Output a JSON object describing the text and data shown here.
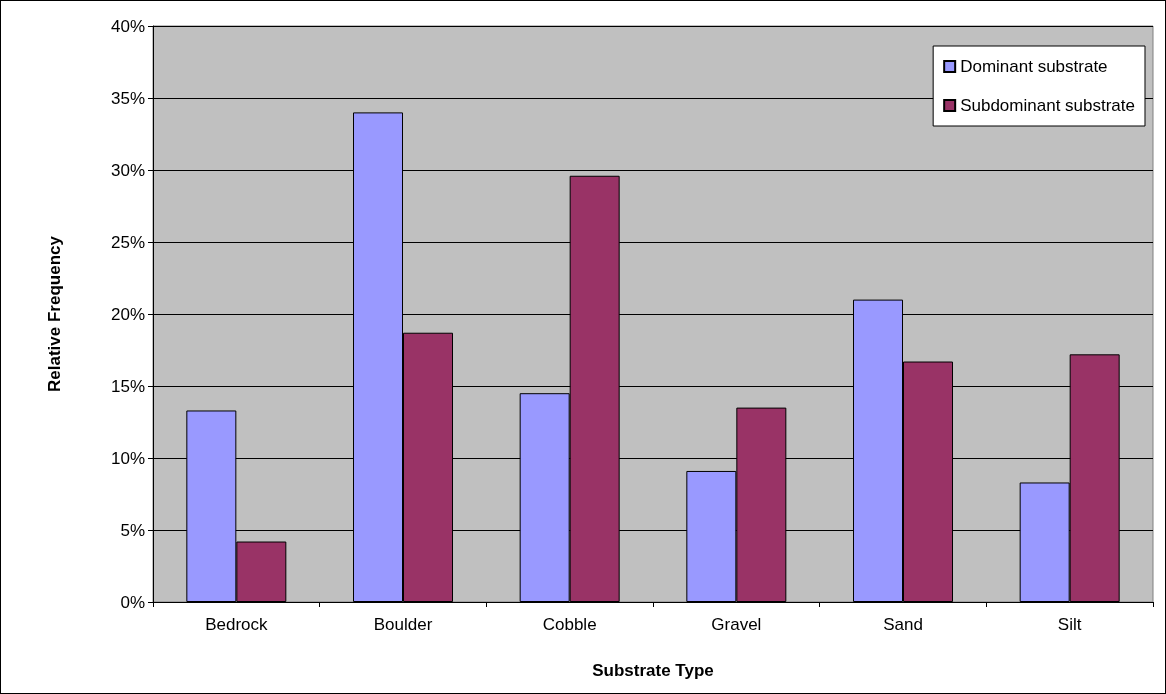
{
  "chart_data": {
    "type": "bar",
    "xlabel": "Substrate Type",
    "ylabel": "Relative Frequency",
    "categories": [
      "Bedrock",
      "Boulder",
      "Cobble",
      "Gravel",
      "Sand",
      "Silt"
    ],
    "series": [
      {
        "name": "Dominant substrate",
        "color": "#9999ff",
        "values": [
          13.3,
          34.0,
          14.5,
          9.1,
          21.0,
          8.3
        ]
      },
      {
        "name": "Subdominant substrate",
        "color": "#993366",
        "values": [
          4.2,
          18.7,
          29.6,
          13.5,
          16.7,
          17.2
        ]
      }
    ],
    "ylim": [
      0,
      40
    ],
    "yticks": [
      {
        "value": 0,
        "label": "0%"
      },
      {
        "value": 5,
        "label": "5%"
      },
      {
        "value": 10,
        "label": "10%"
      },
      {
        "value": 15,
        "label": "15%"
      },
      {
        "value": 20,
        "label": "20%"
      },
      {
        "value": 25,
        "label": "25%"
      },
      {
        "value": 30,
        "label": "30%"
      },
      {
        "value": 35,
        "label": "35%"
      },
      {
        "value": 40,
        "label": "40%"
      }
    ],
    "grid": "y",
    "legend": "top right"
  }
}
